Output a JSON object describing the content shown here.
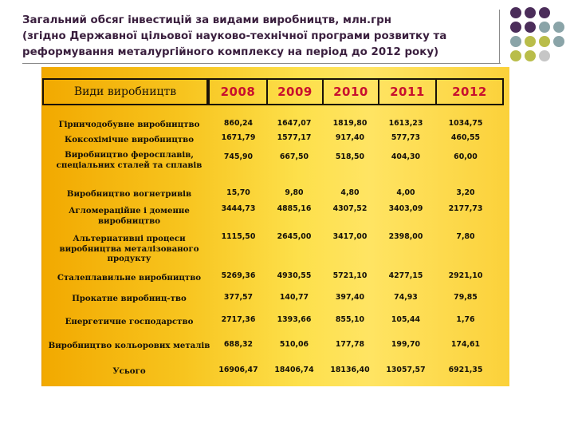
{
  "title": {
    "line1": "Загальний обсяг інвестицій за видами виробництв, млн.грн",
    "line2": " (згідно Державної цільової науково-технічної програми розвитку та",
    "line3": "реформування металургійного комплексу на період до 2012 року)"
  },
  "decor": {
    "dot_colors": [
      "#4b2d5a",
      "#4b2d5a",
      "#4b2d5a",
      "#4b2d5a",
      "#4b2d5a",
      "#8aa4a8",
      "#8aa4a8",
      "#8aa4a8",
      "#b9bd4a",
      "#b9bd4a",
      "#8aa4a8",
      "#b9bd4a",
      "#b9bd4a",
      "#c6c6c6"
    ]
  },
  "table": {
    "header": {
      "name": "Види виробництв",
      "years": [
        "2008",
        "2009",
        "2010",
        "2011",
        "2012"
      ]
    },
    "rows": [
      {
        "name": "Гірничодобувне виробництво",
        "values": [
          "860,24",
          "1647,07",
          "1819,80",
          "1613,23",
          "1034,75"
        ]
      },
      {
        "name": "Коксохімічне виробництво",
        "values": [
          "1671,79",
          "1577,17",
          "917,40",
          "577,73",
          "460,55"
        ]
      },
      {
        "name": "Виробництво феросплавів, спеціальних сталей та сплавів",
        "values": [
          "745,90",
          "667,50",
          "518,50",
          "404,30",
          "60,00"
        ]
      },
      {
        "name": "Виробництво вогнетривів",
        "values": [
          "15,70",
          "9,80",
          "4,80",
          "4,00",
          "3,20"
        ]
      },
      {
        "name": "Агломераційне і доменне виробництво",
        "values": [
          "3444,73",
          "4885,16",
          "4307,52",
          "3403,09",
          "2177,73"
        ]
      },
      {
        "name": "Альтернативні процеси виробництва металізованого продукту",
        "values": [
          "1115,50",
          "2645,00",
          "3417,00",
          "2398,00",
          "7,80"
        ]
      },
      {
        "name": "Сталеплавильне виробництво",
        "values": [
          "5269,36",
          "4930,55",
          "5721,10",
          "4277,15",
          "2921,10"
        ]
      },
      {
        "name": "Прокатне виробниц-тво",
        "values": [
          "377,57",
          "140,77",
          "397,40",
          "74,93",
          "79,85"
        ]
      },
      {
        "name": "Енергетичне господарство",
        "values": [
          "2717,36",
          "1393,66",
          "855,10",
          "105,44",
          "1,76"
        ]
      },
      {
        "name": "Виробництво кольорових металів",
        "values": [
          "688,32",
          "510,06",
          "177,78",
          "199,70",
          "174,61"
        ]
      },
      {
        "name": "Усього",
        "values": [
          "16906,47",
          "18406,74",
          "18136,40",
          "13057,57",
          "6921,35"
        ]
      }
    ]
  }
}
